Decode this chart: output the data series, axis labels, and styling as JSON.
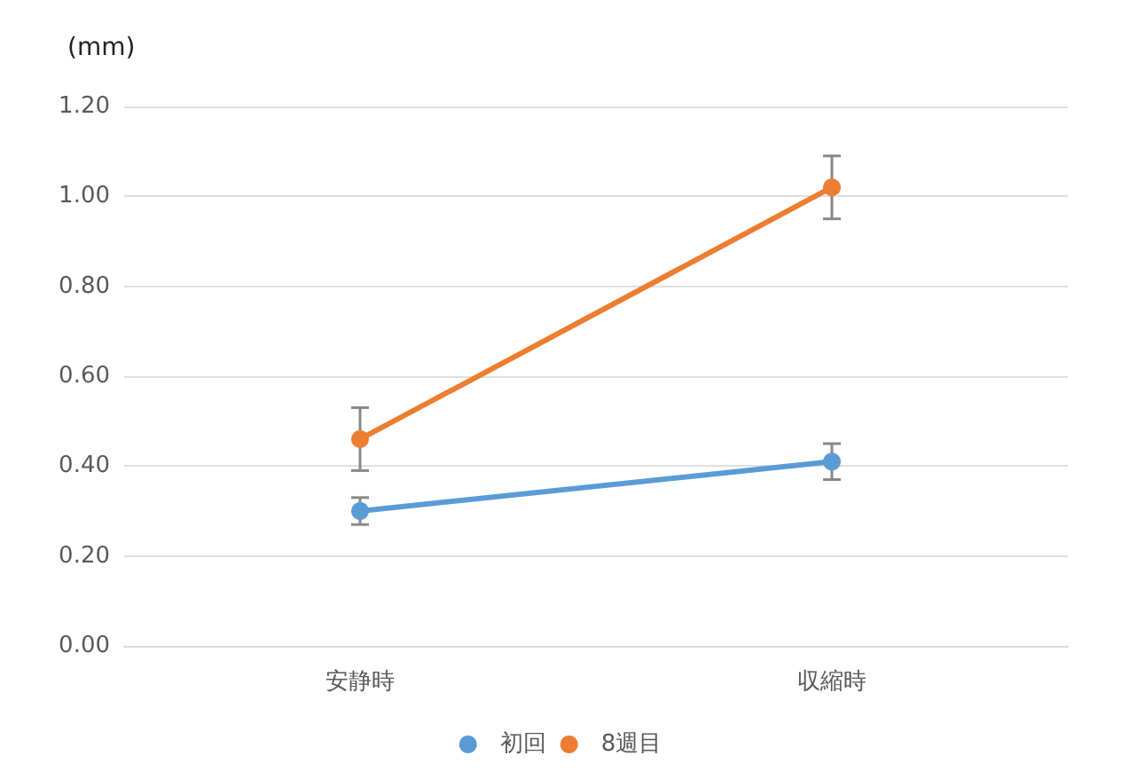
{
  "chart_data": {
    "type": "line",
    "ylabel": "(mm)",
    "categories": [
      "安静時",
      "収縮時"
    ],
    "series": [
      {
        "name": "初回",
        "color": "#5b9bd5",
        "values": [
          0.3,
          0.41
        ],
        "errors": [
          0.03,
          0.04
        ]
      },
      {
        "name": "8週目",
        "color": "#ed7d31",
        "values": [
          0.46,
          1.02
        ],
        "errors": [
          0.07,
          0.07
        ]
      }
    ],
    "ylim": [
      0,
      1.2
    ],
    "yticks": [
      {
        "value": 0,
        "label": "0.00"
      },
      {
        "value": 0.2,
        "label": "0.20"
      },
      {
        "value": 0.4,
        "label": "0.40"
      },
      {
        "value": 0.6,
        "label": "0.60"
      },
      {
        "value": 0.8,
        "label": "0.80"
      },
      {
        "value": 1.0,
        "label": "1.00"
      },
      {
        "value": 1.2,
        "label": "1.20"
      }
    ],
    "grid": "y",
    "legend": "bottom",
    "marker": "circle",
    "line_style": "solid"
  }
}
